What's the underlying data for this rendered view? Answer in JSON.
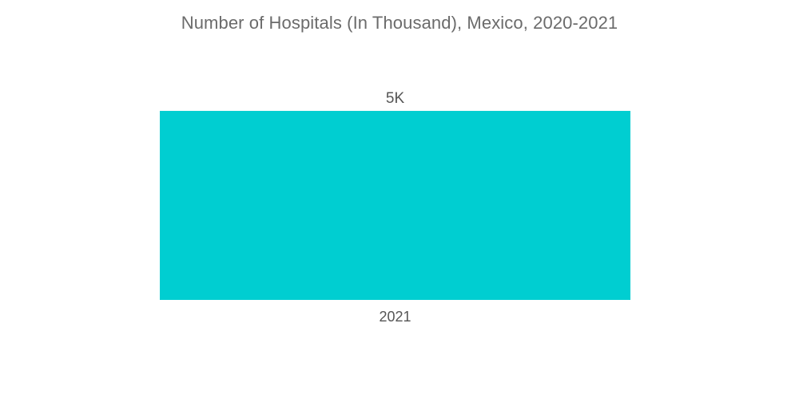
{
  "chart_data": {
    "type": "bar",
    "title": "Number of Hospitals (In Thousand), Mexico, 2020-2021",
    "categories": [
      "2021"
    ],
    "values": [
      5
    ],
    "data_labels": [
      "5K"
    ],
    "xlabel": "",
    "ylabel": "",
    "ylim": [
      0,
      5
    ],
    "grid": false,
    "legend": "none",
    "bar_color": "#00ced1"
  }
}
